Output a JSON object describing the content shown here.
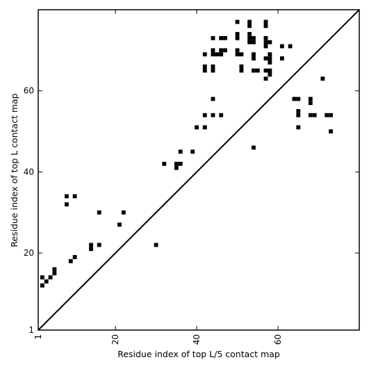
{
  "chart_data": {
    "type": "scatter",
    "xlabel": "Residue index of top L/5 contact map",
    "ylabel": "Residue index of top L contact map",
    "xlim": [
      1,
      80
    ],
    "ylim": [
      1,
      80
    ],
    "x_ticks": [
      "1",
      "20",
      "40",
      "60"
    ],
    "y_ticks": [
      "1",
      "20",
      "40",
      "60"
    ],
    "x_tick_values": [
      1,
      20,
      40,
      60
    ],
    "y_tick_values": [
      1,
      20,
      40,
      60
    ],
    "diagonal": true,
    "grid": false,
    "marker": "square",
    "color": "#000000",
    "points": [
      [
        2,
        14
      ],
      [
        2,
        12
      ],
      [
        3,
        13
      ],
      [
        4,
        14
      ],
      [
        5,
        15
      ],
      [
        5,
        16
      ],
      [
        8,
        34
      ],
      [
        8,
        32
      ],
      [
        9,
        18
      ],
      [
        10,
        19
      ],
      [
        10,
        34
      ],
      [
        14,
        21
      ],
      [
        14,
        22
      ],
      [
        16,
        22
      ],
      [
        16,
        30
      ],
      [
        21,
        27
      ],
      [
        22,
        30
      ],
      [
        30,
        22
      ],
      [
        32,
        42
      ],
      [
        35,
        41
      ],
      [
        35,
        42
      ],
      [
        36,
        42
      ],
      [
        36,
        45
      ],
      [
        39,
        45
      ],
      [
        40,
        51
      ],
      [
        42,
        51
      ],
      [
        42,
        54
      ],
      [
        42,
        65
      ],
      [
        42,
        66
      ],
      [
        42,
        69
      ],
      [
        44,
        54
      ],
      [
        44,
        58
      ],
      [
        44,
        65
      ],
      [
        44,
        66
      ],
      [
        44,
        69
      ],
      [
        44,
        70
      ],
      [
        44,
        73
      ],
      [
        45,
        69
      ],
      [
        46,
        54
      ],
      [
        46,
        69
      ],
      [
        46,
        70
      ],
      [
        46,
        73
      ],
      [
        47,
        70
      ],
      [
        47,
        73
      ],
      [
        50,
        69
      ],
      [
        50,
        70
      ],
      [
        50,
        73
      ],
      [
        50,
        74
      ],
      [
        50,
        77
      ],
      [
        51,
        65
      ],
      [
        51,
        66
      ],
      [
        51,
        69
      ],
      [
        53,
        72
      ],
      [
        53,
        73
      ],
      [
        53,
        74
      ],
      [
        53,
        76
      ],
      [
        53,
        77
      ],
      [
        54,
        46
      ],
      [
        54,
        65
      ],
      [
        54,
        68
      ],
      [
        54,
        69
      ],
      [
        54,
        72
      ],
      [
        54,
        73
      ],
      [
        55,
        65
      ],
      [
        57,
        63
      ],
      [
        57,
        65
      ],
      [
        57,
        68
      ],
      [
        57,
        71
      ],
      [
        57,
        72
      ],
      [
        57,
        73
      ],
      [
        57,
        76
      ],
      [
        57,
        77
      ],
      [
        58,
        64
      ],
      [
        58,
        65
      ],
      [
        58,
        67
      ],
      [
        58,
        68
      ],
      [
        58,
        69
      ],
      [
        58,
        72
      ],
      [
        61,
        68
      ],
      [
        61,
        71
      ],
      [
        63,
        71
      ],
      [
        64,
        58
      ],
      [
        65,
        58
      ],
      [
        65,
        51
      ],
      [
        65,
        54
      ],
      [
        65,
        55
      ],
      [
        68,
        54
      ],
      [
        68,
        57
      ],
      [
        68,
        58
      ],
      [
        69,
        54
      ],
      [
        71,
        63
      ],
      [
        72,
        54
      ],
      [
        73,
        50
      ],
      [
        73,
        54
      ]
    ]
  }
}
